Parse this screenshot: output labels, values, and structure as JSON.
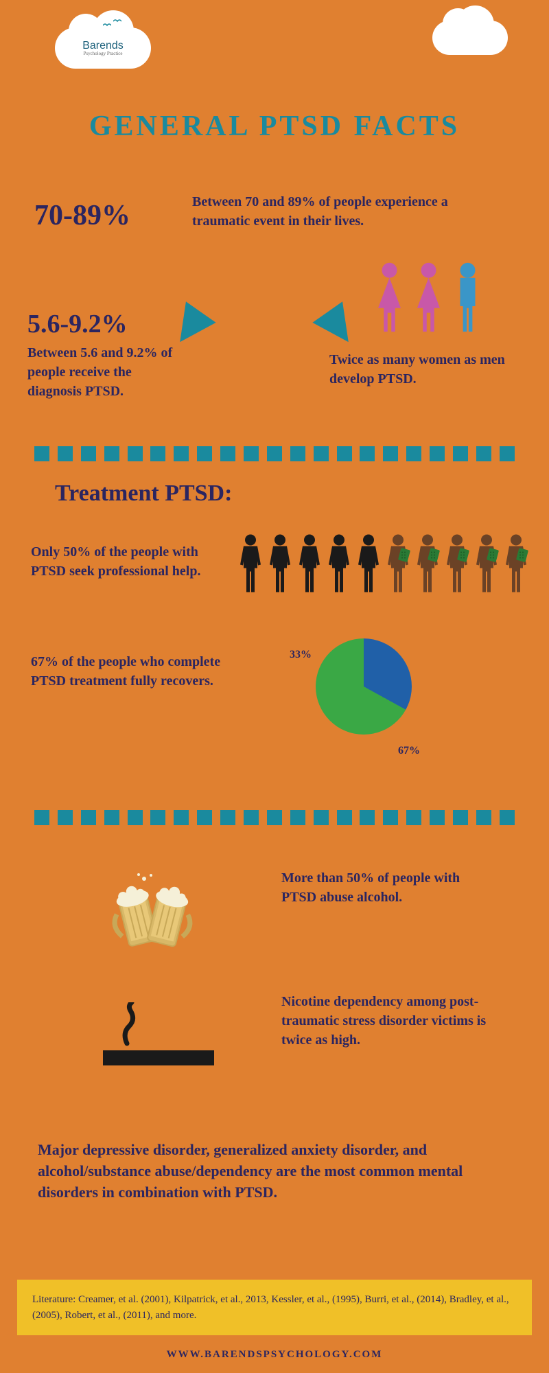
{
  "colors": {
    "background": "#e08030",
    "title": "#1a8a9e",
    "dark_navy": "#2b2560",
    "teal": "#1a8a9e",
    "cloud": "#ffffff",
    "person_female": "#c858a8",
    "person_male": "#3a96c8",
    "person_dark": "#1a1a1a",
    "person_brown": "#6b4226",
    "pie_green": "#3aa845",
    "pie_blue": "#2060a8",
    "footer_bg": "#f0c028",
    "beer_foam": "#f5f0d8",
    "beer_liquid": "#d8b868",
    "beer_glass": "#c8a858"
  },
  "logo": {
    "brand": "Barends",
    "sub": "Psychology Practice"
  },
  "title": "GENERAL PTSD FACTS",
  "stat1": {
    "percent": "70-89%",
    "text": "Between 70 and 89% of people experience a traumatic event in their lives."
  },
  "stat2": {
    "percent": "5.6-9.2%",
    "text": "Between 5.6 and 9.2% of people receive the diagnosis PTSD."
  },
  "gender_text": "Twice as many women as men develop PTSD.",
  "treatment_title": "Treatment PTSD:",
  "treatment_text1": "Only 50% of the people with PTSD seek professional help.",
  "treatment_text2": "67% of the people who complete PTSD treatment fully recovers.",
  "pie": {
    "slice1_label": "33%",
    "slice1_value": 33,
    "slice2_label": "67%",
    "slice2_value": 67
  },
  "alcohol_text": "More than 50% of people with PTSD abuse alcohol.",
  "nicotine_text": "Nicotine dependency among post-traumatic stress disorder victims is twice as high.",
  "disorders_text": "Major depressive disorder, generalized anxiety disorder, and alcohol/substance abuse/dependency are the most common mental disorders in combination with PTSD.",
  "literature": "Literature: Creamer, et al. (2001),  Kilpatrick, et al., 2013, Kessler, et al., (1995), Burri, et al., (2014), Bradley, et al., (2005), Robert, et al., (2011), and more.",
  "url": "WWW.BARENDSPSYCHOLOGY.COM"
}
